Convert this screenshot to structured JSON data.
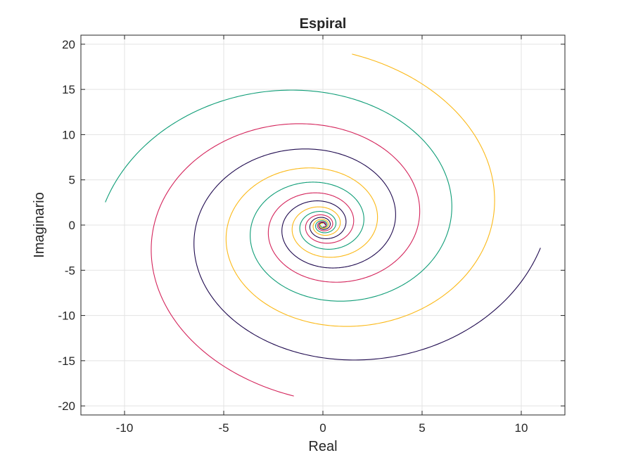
{
  "chart_data": {
    "type": "line",
    "title": "Espiral",
    "xlabel": "Real",
    "ylabel": "Imaginario",
    "xlim": [
      -12.2,
      12.2
    ],
    "ylim": [
      -21,
      21
    ],
    "xticks": [
      -10,
      -5,
      0,
      5,
      10
    ],
    "yticks": [
      -20,
      -15,
      -10,
      -5,
      0,
      5,
      10,
      15,
      20
    ],
    "xtick_labels": [
      "-10",
      "-5",
      "0",
      "5",
      "10"
    ],
    "ytick_labels": [
      "-20",
      "-15",
      "-10",
      "-5",
      "0",
      "5",
      "10",
      "15",
      "20"
    ],
    "grid": true,
    "parametric": {
      "shape": "elliptical spiral r(t) = 0.2 * 1.2^t, x = 0.58 * r * cos(t + phase), y = r * sin(t + phase)",
      "t_range": [
        0,
        25
      ],
      "samples": 1500,
      "x_scale": 0.58,
      "r0": 0.2,
      "growth": 1.2
    },
    "series": [
      {
        "phase_rad": 0.0,
        "color": "#1f0a4f"
      },
      {
        "phase_rad": 1.5708,
        "color": "#fbb918"
      },
      {
        "phase_rad": 3.1416,
        "color": "#0f9d77"
      },
      {
        "phase_rad": 4.7124,
        "color": "#d4245b"
      }
    ]
  }
}
